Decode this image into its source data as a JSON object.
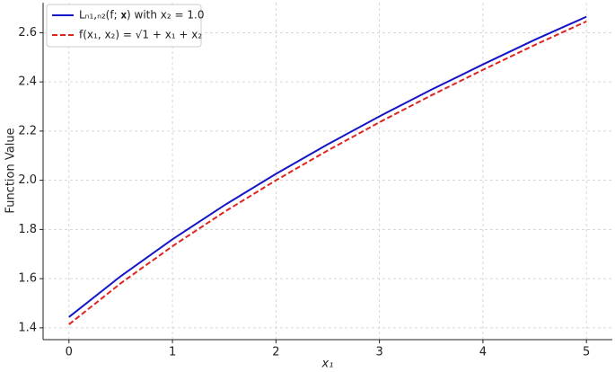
{
  "chart_data": {
    "type": "line",
    "xlabel": "x₁",
    "ylabel": "Function Value",
    "x": [
      0,
      0.5,
      1,
      1.5,
      2,
      2.5,
      3,
      3.5,
      4,
      4.5,
      5
    ],
    "series": [
      {
        "name": "Lₙ₁,ₙ₂(f; 𝐱) with x₂ = 1.0",
        "color": "#1515c8",
        "dash": false,
        "values": [
          1.444,
          1.61,
          1.76,
          1.898,
          2.026,
          2.146,
          2.26,
          2.368,
          2.471,
          2.571,
          2.665
        ]
      },
      {
        "name": "f(x₁, x₂) = √1 + x₁ + x₂",
        "color": "#e0241c",
        "dash": true,
        "values": [
          1.414,
          1.581,
          1.732,
          1.871,
          2.0,
          2.121,
          2.236,
          2.345,
          2.449,
          2.55,
          2.646
        ]
      }
    ],
    "xlim": [
      -0.25,
      5.25
    ],
    "ylim": [
      1.352,
      2.722
    ],
    "xticks": [
      0,
      1,
      2,
      3,
      4,
      5
    ],
    "yticks": [
      1.4,
      1.6,
      1.8,
      {
        "value": 2,
        "label": "2.0"
      },
      2.2,
      2.4,
      2.6
    ],
    "grid": true,
    "legend": "upper left"
  }
}
